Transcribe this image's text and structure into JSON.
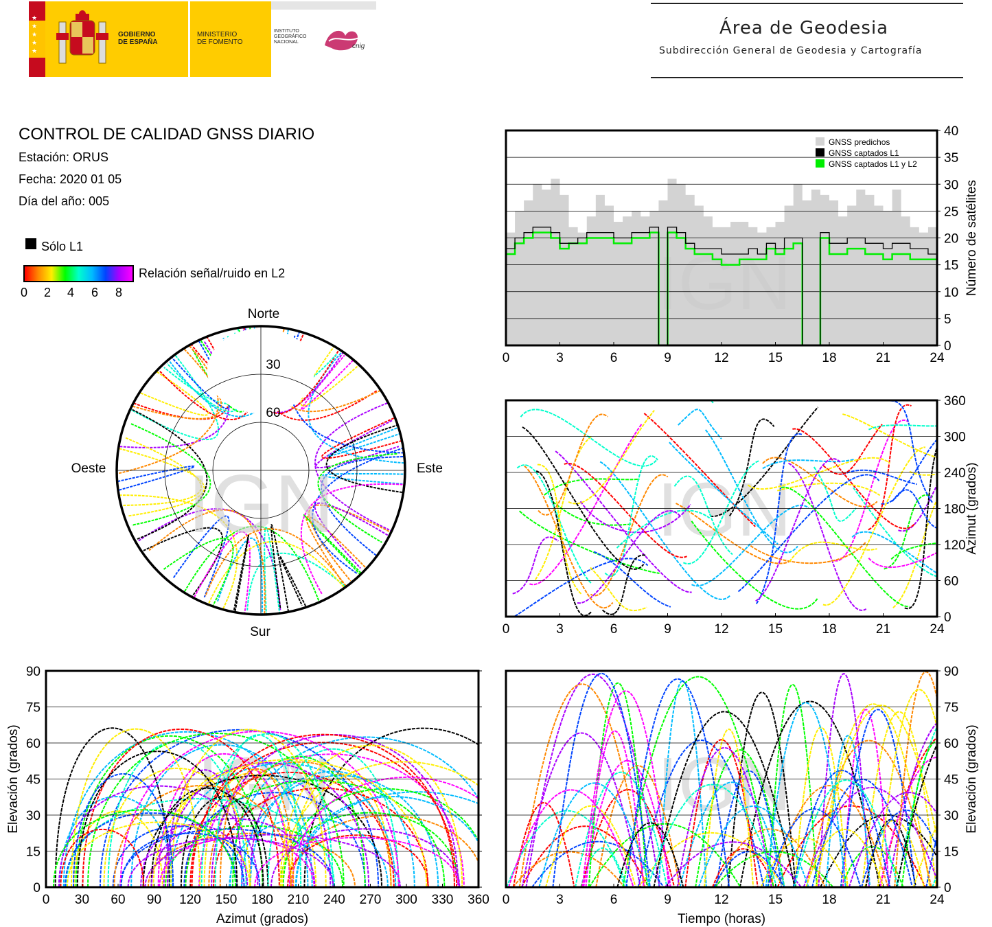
{
  "header": {
    "gov_line1": "GOBIERNO",
    "gov_line2": "DE ESPAÑA",
    "min_line1": "MINISTERIO",
    "min_line2": "DE FOMENTO",
    "inst_line1": "INSTITUTO",
    "inst_line2": "GEOGRÁFICO",
    "inst_line3": "NACIONAL",
    "cnig": "cnig",
    "area_title": "Área de Geodesia",
    "area_subtitle": "Subdirección General de Geodesia y Cartografía"
  },
  "info": {
    "title": "CONTROL DE CALIDAD GNSS DIARIO",
    "station": "Estación: ORUS",
    "date": "Fecha: 2020 01 05",
    "doy": "Día del año: 005"
  },
  "legend": {
    "only_l1": "Sólo L1",
    "snr_label": "Relación señal/ruido en L2",
    "snr_ticks": [
      "0",
      "2",
      "4",
      "6",
      "8"
    ]
  },
  "watermark": "IGN",
  "colors": {
    "predicted": "#d3d3d3",
    "l1": "#000000",
    "l1l2": "#00ee00",
    "snr_scale": [
      "#ff0000",
      "#ff8800",
      "#ffee00",
      "#00ff00",
      "#00ffcc",
      "#00bbff",
      "#0044ff",
      "#aa00ff",
      "#ff00ff"
    ]
  },
  "chart_data": [
    {
      "id": "sat-count",
      "type": "area",
      "ylabel": "Número de satélites",
      "xlim": [
        0,
        24
      ],
      "ylim": [
        0,
        40
      ],
      "x_ticks": [
        "0",
        "3",
        "6",
        "9",
        "12",
        "15",
        "18",
        "21",
        "24"
      ],
      "y_ticks": [
        "0",
        "5",
        "10",
        "15",
        "20",
        "25",
        "30",
        "35",
        "40"
      ],
      "legend_position": "top-right",
      "series": [
        {
          "name": "GNSS predichos",
          "x": [
            0,
            0.5,
            1,
            1.5,
            2,
            2.5,
            3,
            3.5,
            4,
            4.5,
            5,
            5.5,
            6,
            6.5,
            7,
            7.5,
            8,
            8.5,
            9,
            9.5,
            10,
            10.5,
            11,
            11.5,
            12,
            12.5,
            13,
            13.5,
            14,
            14.5,
            15,
            15.5,
            16,
            16.5,
            17,
            17.5,
            18,
            18.5,
            19,
            19.5,
            20,
            20.5,
            21,
            21.5,
            22,
            22.5,
            23,
            23.5,
            24
          ],
          "values": [
            21,
            25,
            27,
            30,
            29,
            31,
            28,
            22,
            21,
            24,
            28,
            26,
            23,
            24,
            25,
            24,
            25,
            27,
            31,
            30,
            28,
            26,
            24,
            22,
            22,
            23,
            23,
            22,
            21,
            22,
            23,
            26,
            30,
            27,
            29,
            28,
            27,
            24,
            26,
            29,
            28,
            26,
            25,
            29,
            24,
            22,
            21,
            22,
            21
          ]
        },
        {
          "name": "GNSS captados L1",
          "x": [
            0,
            0.5,
            1,
            1.5,
            2,
            2.5,
            3,
            3.5,
            4,
            4.5,
            5,
            5.5,
            6,
            6.5,
            7,
            7.5,
            8,
            8.5,
            9,
            9.5,
            10,
            10.5,
            11,
            11.5,
            12,
            12.5,
            13,
            13.5,
            14,
            14.5,
            15,
            15.5,
            16,
            16.5,
            17,
            17.5,
            18,
            18.5,
            19,
            19.5,
            20,
            20.5,
            21,
            21.5,
            22,
            22.5,
            23,
            23.5,
            24
          ],
          "values": [
            18,
            20,
            21,
            22,
            22,
            21,
            19,
            19,
            20,
            21,
            21,
            21,
            20,
            20,
            21,
            21,
            22,
            0,
            22,
            21,
            19,
            18,
            18,
            18,
            17,
            17,
            17,
            18,
            17,
            19,
            18,
            20,
            20,
            0,
            0,
            21,
            19,
            19,
            20,
            20,
            19,
            19,
            18,
            19,
            19,
            18,
            18,
            17,
            18
          ]
        },
        {
          "name": "GNSS captados L1 y L2",
          "x": [
            0,
            0.5,
            1,
            1.5,
            2,
            2.5,
            3,
            3.5,
            4,
            4.5,
            5,
            5.5,
            6,
            6.5,
            7,
            7.5,
            8,
            8.5,
            9,
            9.5,
            10,
            10.5,
            11,
            11.5,
            12,
            12.5,
            13,
            13.5,
            14,
            14.5,
            15,
            15.5,
            16,
            16.5,
            17,
            17.5,
            18,
            18.5,
            19,
            19.5,
            20,
            20.5,
            21,
            21.5,
            22,
            22.5,
            23,
            23.5,
            24
          ],
          "values": [
            17,
            19,
            20,
            21,
            21,
            20,
            18,
            19,
            19,
            20,
            20,
            20,
            19,
            19,
            20,
            20,
            21,
            0,
            21,
            20,
            18,
            17,
            17,
            16,
            15,
            15,
            16,
            16,
            16,
            18,
            17,
            18,
            19,
            0,
            0,
            20,
            17,
            17,
            18,
            18,
            17,
            17,
            16,
            17,
            17,
            16,
            16,
            16,
            16
          ]
        }
      ]
    },
    {
      "id": "skyplot",
      "type": "scatter",
      "directions": {
        "north": "Norte",
        "south": "Sur",
        "east": "Este",
        "west": "Oeste"
      },
      "ring_labels": [
        "30",
        "60"
      ]
    },
    {
      "id": "azimuth-time",
      "type": "scatter",
      "ylabel": "Azimut (grados)",
      "xlim": [
        0,
        24
      ],
      "ylim": [
        0,
        360
      ],
      "x_ticks": [
        "0",
        "3",
        "6",
        "9",
        "12",
        "15",
        "18",
        "21",
        "24"
      ],
      "y_ticks": [
        "0",
        "60",
        "120",
        "180",
        "240",
        "300",
        "360"
      ]
    },
    {
      "id": "elevation-azimuth",
      "type": "scatter",
      "xlabel": "Azimut (grados)",
      "ylabel": "Elevación (grados)",
      "xlim": [
        0,
        360
      ],
      "ylim": [
        0,
        90
      ],
      "x_ticks": [
        "0",
        "30",
        "60",
        "90",
        "120",
        "150",
        "180",
        "210",
        "240",
        "270",
        "300",
        "330",
        "360"
      ],
      "y_ticks": [
        "0",
        "15",
        "30",
        "45",
        "60",
        "75",
        "90"
      ]
    },
    {
      "id": "elevation-time",
      "type": "scatter",
      "xlabel": "Tiempo (horas)",
      "ylabel": "Elevación (grados)",
      "xlim": [
        0,
        24
      ],
      "ylim": [
        0,
        90
      ],
      "x_ticks": [
        "0",
        "3",
        "6",
        "9",
        "12",
        "15",
        "18",
        "21",
        "24"
      ],
      "y_ticks": [
        "0",
        "15",
        "30",
        "45",
        "60",
        "75",
        "90"
      ]
    }
  ]
}
